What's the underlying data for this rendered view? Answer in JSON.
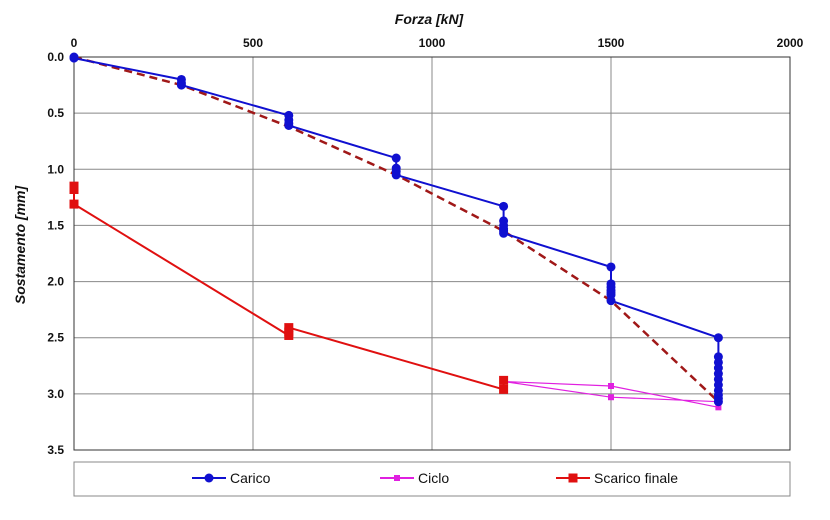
{
  "chart_data": {
    "type": "line",
    "xlabel": "Forza [kN]",
    "ylabel": "Sostamento [mm]",
    "xlim": [
      0,
      2000
    ],
    "ylim": [
      0,
      3.5
    ],
    "y_inverted": true,
    "x_axis_position": "top",
    "x_ticks": [
      0,
      500,
      1000,
      1500,
      2000
    ],
    "y_ticks": [
      0.0,
      0.5,
      1.0,
      1.5,
      2.0,
      2.5,
      3.0,
      3.5
    ],
    "y_tick_labels": [
      "0.0",
      "0.5",
      "1.0",
      "1.5",
      "2.0",
      "2.5",
      "3.0",
      "3.5"
    ],
    "grid": true,
    "legend_position": "bottom",
    "legend": [
      {
        "name": "Carico",
        "color": "#1010d0",
        "marker": "circle"
      },
      {
        "name": "Ciclo",
        "color": "#e020e0",
        "marker": "square"
      },
      {
        "name": "Scarico finale",
        "color": "#e01010",
        "marker": "square"
      }
    ],
    "series": [
      {
        "name": "Carico",
        "color": "#1010d0",
        "marker": "circle",
        "x": [
          0,
          0,
          300,
          300,
          300,
          600,
          600,
          600,
          600,
          900,
          900,
          900,
          900,
          1200,
          1200,
          1200,
          1200,
          1200,
          1200,
          1500,
          1500,
          1500,
          1500,
          1500,
          1500,
          1500,
          1800,
          1800,
          1800,
          1800,
          1800,
          1800,
          1800,
          1800,
          1800,
          1800,
          1800
        ],
        "values": [
          0.0,
          0.01,
          0.2,
          0.23,
          0.25,
          0.52,
          0.56,
          0.59,
          0.61,
          0.9,
          0.99,
          1.02,
          1.05,
          1.33,
          1.46,
          1.5,
          1.53,
          1.55,
          1.57,
          1.87,
          2.02,
          2.05,
          2.08,
          2.1,
          2.12,
          2.17,
          2.5,
          2.67,
          2.72,
          2.77,
          2.82,
          2.87,
          2.92,
          2.97,
          3.01,
          3.04,
          3.07
        ]
      },
      {
        "name": "",
        "color": "#a01818",
        "line_style": "dashed",
        "x": [
          0,
          300,
          600,
          900,
          1200,
          1500,
          1800
        ],
        "values": [
          0.0,
          0.25,
          0.62,
          1.05,
          1.55,
          2.17,
          3.07
        ]
      },
      {
        "name": "Ciclo",
        "color": "#e020e0",
        "marker": "square",
        "x": [
          1800,
          1500,
          1200,
          1500,
          1800
        ],
        "values": [
          3.12,
          2.93,
          2.89,
          3.03,
          3.07
        ]
      },
      {
        "name": "Scarico finale",
        "color": "#e01010",
        "marker": "square",
        "x": [
          1200,
          1200,
          600,
          600,
          600,
          0,
          0,
          0
        ],
        "values": [
          2.88,
          2.96,
          2.41,
          2.45,
          2.48,
          1.31,
          1.18,
          1.15
        ]
      }
    ]
  }
}
